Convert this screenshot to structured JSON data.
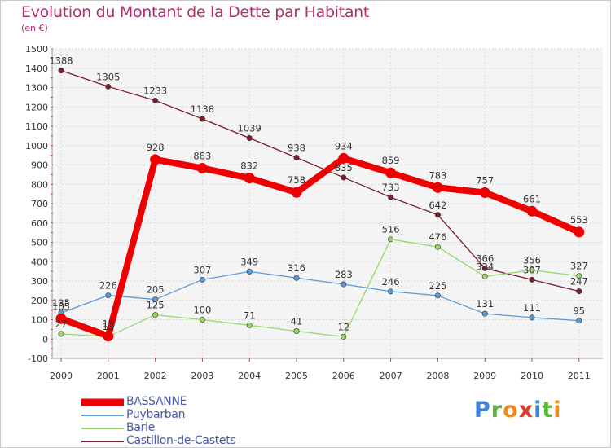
{
  "header": {
    "title": "Evolution du Montant de la Dette par Habitant",
    "unit": "(en €)"
  },
  "chart_data": {
    "type": "line",
    "title": "Evolution du Montant de la Dette par Habitant",
    "subtitle": "(en €)",
    "x": [
      "2000",
      "2001",
      "2002",
      "2003",
      "2004",
      "2005",
      "2006",
      "2007",
      "2008",
      "2009",
      "2010",
      "2011"
    ],
    "ylim": [
      -100,
      1500
    ],
    "yticks": [
      -100,
      0,
      100,
      200,
      300,
      400,
      500,
      600,
      700,
      800,
      900,
      1000,
      1100,
      1200,
      1300,
      1400,
      1500
    ],
    "grid": true,
    "legend_position": "bottom-left",
    "series": [
      {
        "name": "Castillon-de-Castets",
        "color": "#7a1f2b",
        "values": [
          1388,
          1305,
          1233,
          1138,
          1039,
          938,
          835,
          733,
          642,
          366,
          307,
          247
        ]
      },
      {
        "name": "Barie",
        "color": "#98d86b",
        "values": [
          27,
          13,
          125,
          100,
          71,
          41,
          12,
          516,
          476,
          324,
          356,
          327
        ]
      },
      {
        "name": "Puybarban",
        "color": "#5b9bd5",
        "values": [
          135,
          226,
          205,
          307,
          349,
          316,
          283,
          246,
          225,
          131,
          111,
          95
        ]
      },
      {
        "name": "BASSANNE",
        "color": "#ee0000",
        "values": [
          105,
          15,
          928,
          883,
          832,
          758,
          934,
          859,
          783,
          757,
          661,
          553
        ]
      }
    ]
  },
  "legend": {
    "items": [
      {
        "label": "BASSANNE",
        "color": "#ee0000"
      },
      {
        "label": "Puybarban",
        "color": "#5b9bd5"
      },
      {
        "label": "Barie",
        "color": "#98d86b"
      },
      {
        "label": "Castillon-de-Castets",
        "color": "#7a1f2b"
      }
    ]
  },
  "logo": {
    "text": "Proxiti",
    "letters": [
      {
        "ch": "P",
        "color": "#3a86d6"
      },
      {
        "ch": "r",
        "color": "#5cb83c"
      },
      {
        "ch": "o",
        "color": "#f08a1c"
      },
      {
        "ch": "x",
        "color": "#e23a2a"
      },
      {
        "ch": "i",
        "color": "#3a86d6"
      },
      {
        "ch": "t",
        "color": "#5cb83c"
      },
      {
        "ch": "i",
        "color": "#f08a1c"
      }
    ]
  }
}
